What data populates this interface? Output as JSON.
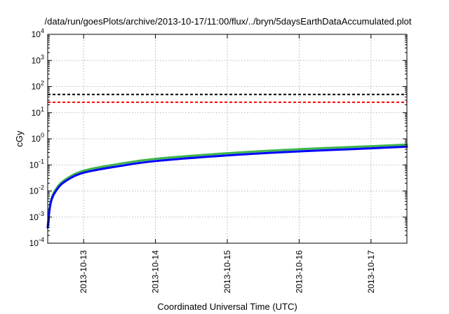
{
  "chart_data": {
    "type": "line",
    "title": "/data/run/goesPlots/archive/2013-10-17/11:00/flux/../bryn/5daysEarthDataAccumulated.plot",
    "xlabel": "Coordinated Universal Time (UTC)",
    "ylabel": "cGy",
    "yscale": "log",
    "ylim": [
      0.0001,
      10000
    ],
    "xlim": [
      "2013-10-12 12:00",
      "2013-10-17 12:00"
    ],
    "x_ticks": [
      "2013-10-13",
      "2013-10-14",
      "2013-10-15",
      "2013-10-16",
      "2013-10-17"
    ],
    "y_ticks": [
      {
        "base": "10",
        "exp": "-4"
      },
      {
        "base": "10",
        "exp": "-3"
      },
      {
        "base": "10",
        "exp": "-2"
      },
      {
        "base": "10",
        "exp": "-1"
      },
      {
        "base": "10",
        "exp": "0"
      },
      {
        "base": "10",
        "exp": "1"
      },
      {
        "base": "10",
        "exp": "2"
      },
      {
        "base": "10",
        "exp": "3"
      },
      {
        "base": "10",
        "exp": "4"
      }
    ],
    "grid": true,
    "reference_lines": [
      {
        "value": 50,
        "color": "#000000",
        "style": "dashed"
      },
      {
        "value": 25,
        "color": "#ff0000",
        "style": "dashed"
      }
    ],
    "series": [
      {
        "color": "#3cb44b",
        "x": [
          "2013-10-12 12:00",
          "2013-10-12 13:00",
          "2013-10-12 15:00",
          "2013-10-12 18:00",
          "2013-10-13 00:00",
          "2013-10-13 12:00",
          "2013-10-14 00:00",
          "2013-10-15 00:00",
          "2013-10-16 00:00",
          "2013-10-17 00:00",
          "2013-10-17 12:00"
        ],
        "y": [
          0.0004,
          0.004,
          0.013,
          0.028,
          0.06,
          0.11,
          0.17,
          0.28,
          0.4,
          0.52,
          0.6
        ]
      },
      {
        "color": "#0000ff",
        "x": [
          "2013-10-12 12:00",
          "2013-10-12 13:00",
          "2013-10-12 15:00",
          "2013-10-12 18:00",
          "2013-10-13 00:00",
          "2013-10-13 12:00",
          "2013-10-14 00:00",
          "2013-10-15 00:00",
          "2013-10-16 00:00",
          "2013-10-17 00:00",
          "2013-10-17 12:00"
        ],
        "y": [
          0.0004,
          0.0035,
          0.011,
          0.024,
          0.05,
          0.09,
          0.14,
          0.23,
          0.33,
          0.43,
          0.5
        ]
      }
    ]
  }
}
